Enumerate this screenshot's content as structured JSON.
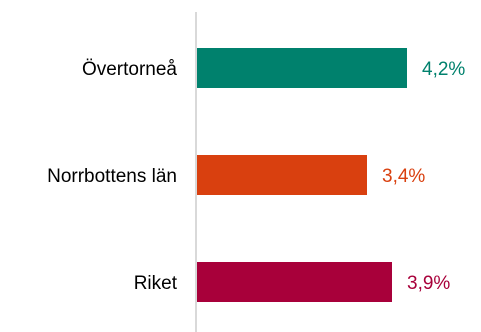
{
  "chart_data": {
    "type": "bar",
    "orientation": "horizontal",
    "categories": [
      "Övertorneå",
      "Norrbottens län",
      "Riket"
    ],
    "values": [
      4.2,
      3.4,
      3.9
    ],
    "value_labels": [
      "4,2%",
      "3,4%",
      "3,9%"
    ],
    "colors": [
      "#00816d",
      "#d9400f",
      "#a8003a"
    ],
    "axis_color": "#d9d9d9",
    "xlim": [
      0,
      5
    ],
    "grid": false,
    "legend": "none",
    "title": "",
    "xlabel": "",
    "ylabel": ""
  }
}
